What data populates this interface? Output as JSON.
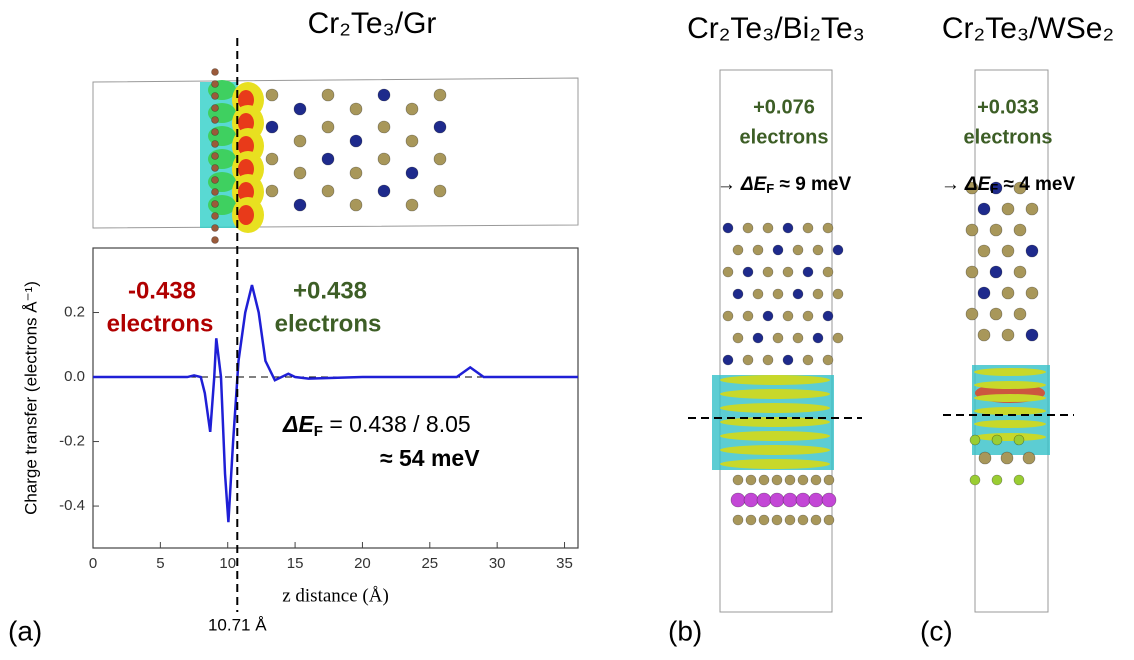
{
  "chart_data": {
    "type": "line",
    "title": "Cr₂Te₃/Gr",
    "xlabel": "z distance (Å)",
    "ylabel": "Charge transfer (electrons Å⁻¹)",
    "x": [
      0,
      7,
      7.5,
      8,
      8.3,
      8.7,
      9.0,
      9.15,
      9.5,
      9.8,
      10.05,
      10.4,
      10.8,
      11.3,
      11.8,
      12.3,
      12.8,
      13.5,
      14.5,
      15,
      16,
      20,
      27,
      28,
      29,
      36
    ],
    "series": [
      {
        "color": "#1f1fd6",
        "values": [
          0,
          0,
          0.005,
          0,
          -0.05,
          -0.17,
          0,
          0.12,
          0,
          -0.3,
          -0.45,
          -0.2,
          0.05,
          0.2,
          0.285,
          0.2,
          0.05,
          -0.01,
          0.01,
          0,
          -0.005,
          0,
          0,
          0.03,
          0,
          0
        ]
      }
    ],
    "xlim": [
      0,
      36
    ],
    "ylim": [
      -0.53,
      0.4
    ],
    "xticks": [
      0,
      5,
      10,
      15,
      20,
      25,
      30,
      35
    ],
    "yticks": [
      -0.4,
      -0.2,
      {
        "value": 0,
        "label": "0.0"
      },
      0.2
    ],
    "vline": {
      "value": 10.71,
      "label": "10.71 Å"
    },
    "annotations": {
      "left": [
        "-0.438",
        "electrons"
      ],
      "right": [
        "+0.438",
        "electrons"
      ],
      "delta": {
        "symbol": "ΔE",
        "sub": "F",
        "text": " = 0.438 / 8.05",
        "result": "≈ 54 meV"
      }
    }
  },
  "panels": [
    {
      "label": "(a)"
    },
    {
      "label": "(b)",
      "title": "Cr₂Te₃/Bi₂Te₃",
      "charge": [
        "+0.076",
        "electrons"
      ],
      "shift": {
        "arrow": "→",
        "symbol": "ΔE",
        "sub": "F",
        "text": " ≈ 9 meV"
      }
    },
    {
      "label": "(c)",
      "title": "Cr₂Te₃/WSe₂",
      "charge": [
        "+0.033",
        "electrons"
      ],
      "shift": {
        "arrow": "→",
        "symbol": "ΔE",
        "sub": "F",
        "text": " ≈ 4 meV"
      }
    }
  ]
}
